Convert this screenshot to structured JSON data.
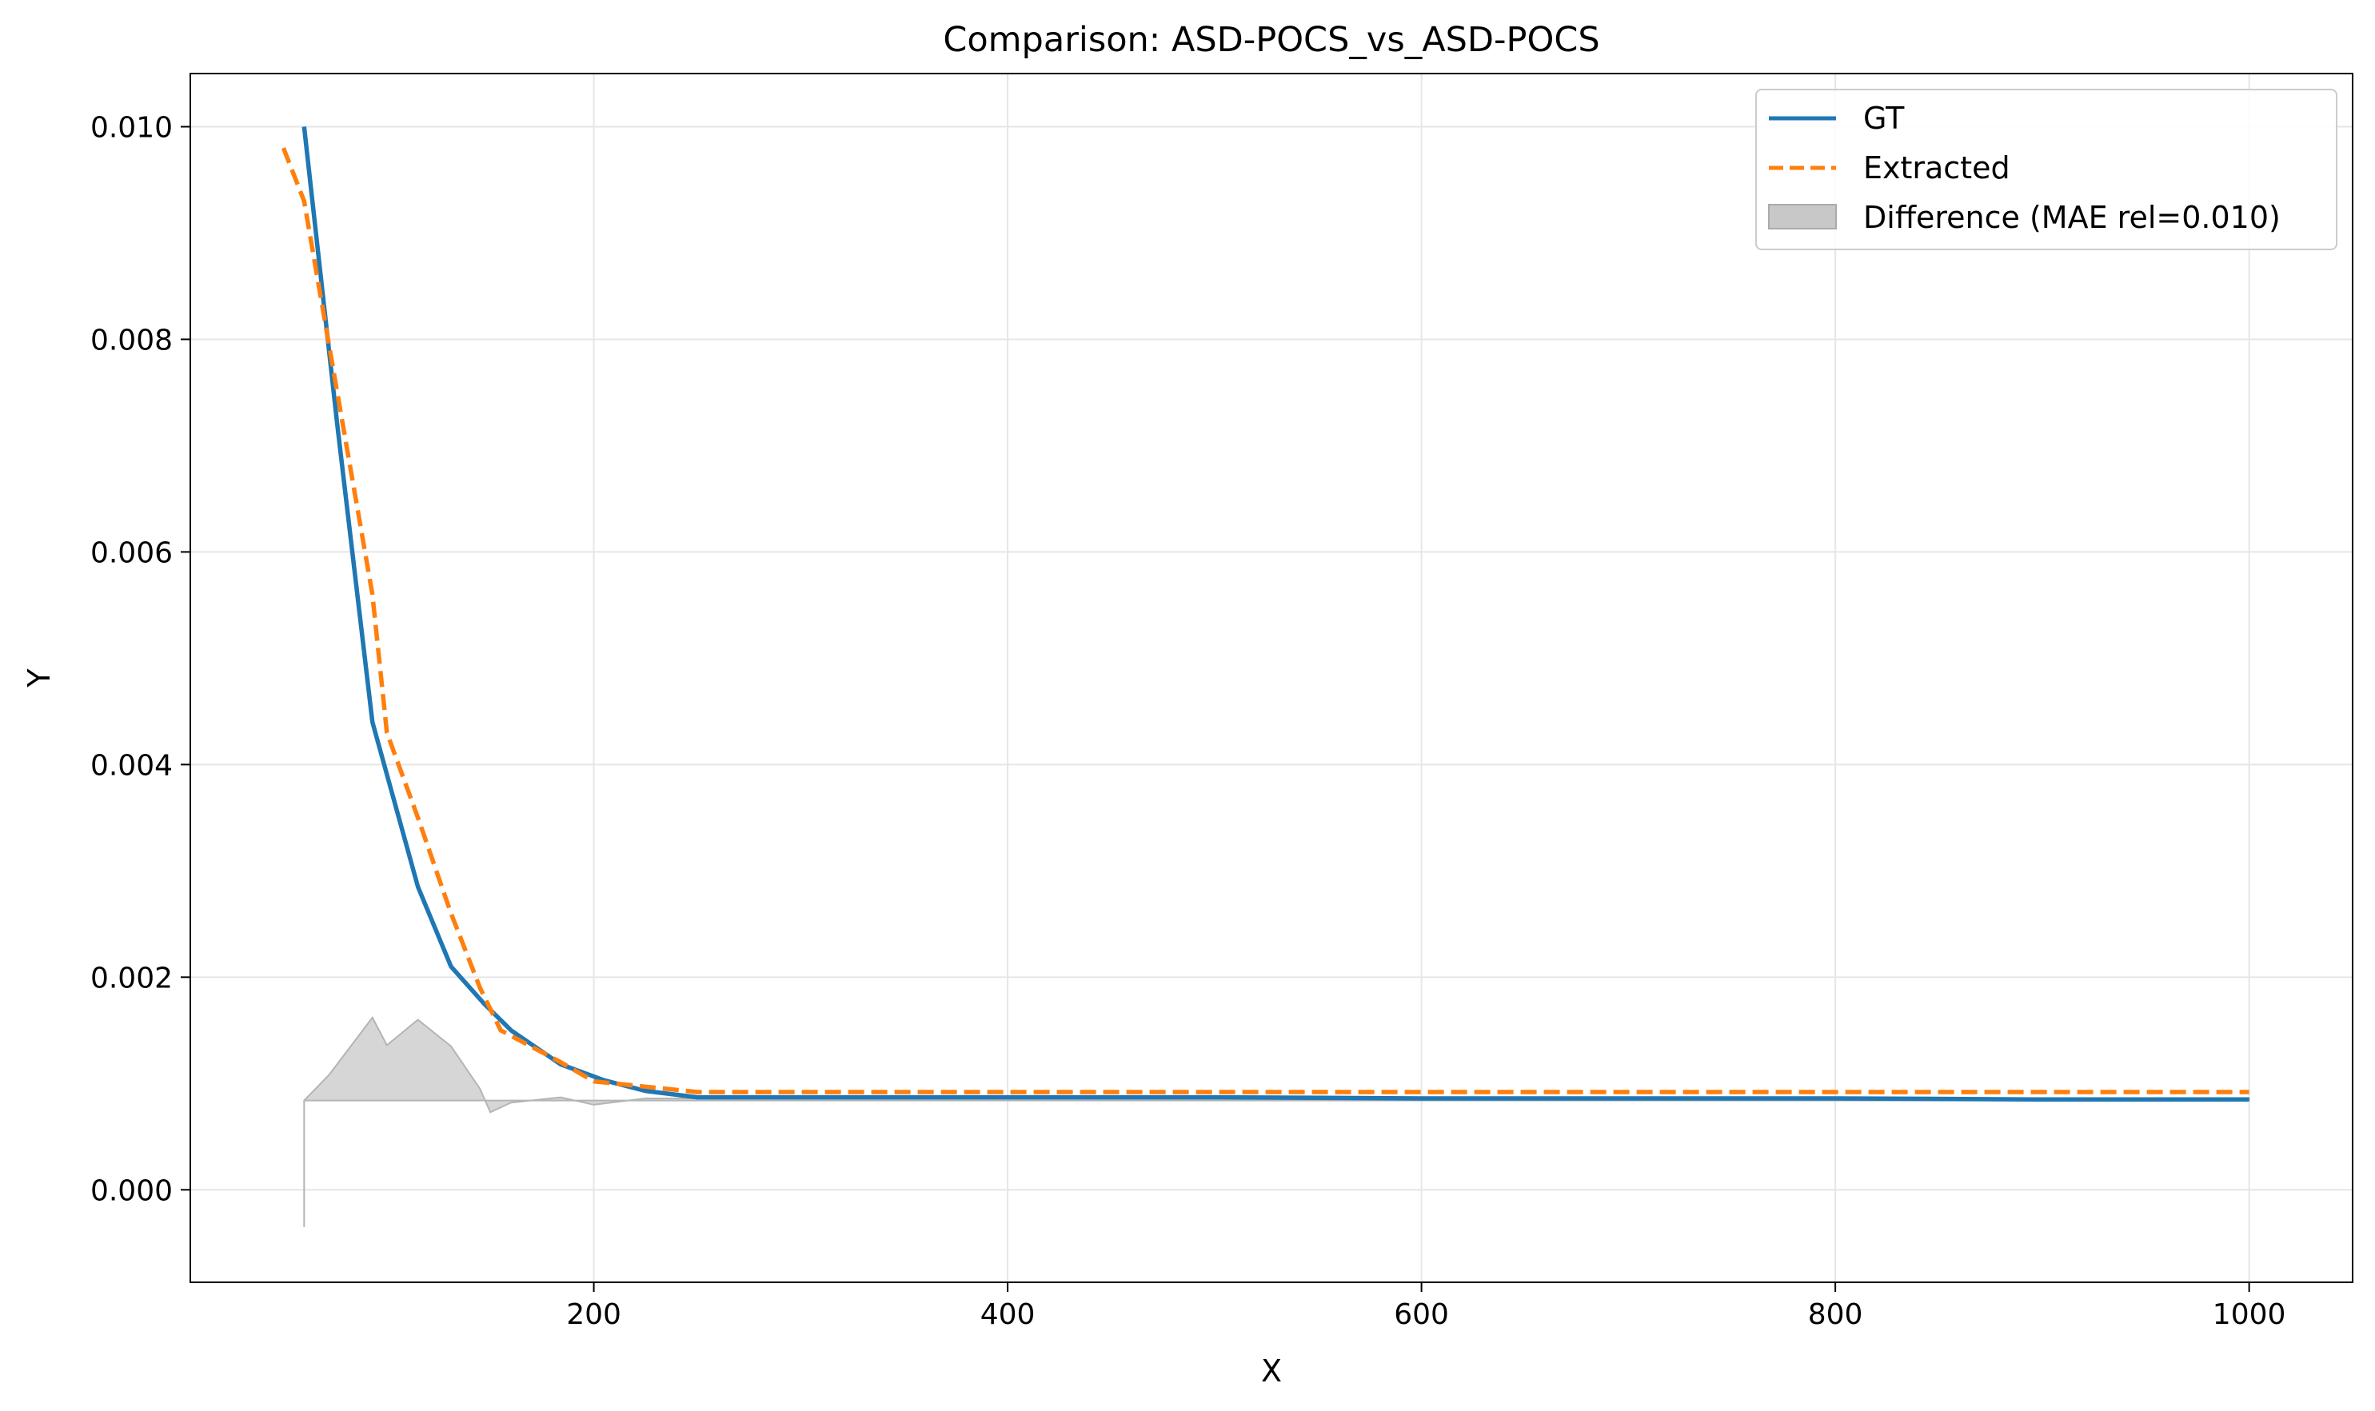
{
  "chart_data": {
    "type": "line",
    "title": "Comparison: ASD-POCS_vs_ASD-POCS",
    "xlabel": "X",
    "ylabel": "Y",
    "xlim": [
      5,
      1050
    ],
    "ylim": [
      -0.00087,
      0.0105
    ],
    "xticks": [
      200,
      400,
      600,
      800,
      1000
    ],
    "xtick_labels": [
      "200",
      "400",
      "600",
      "800",
      "1000"
    ],
    "yticks": [
      0,
      0.002,
      0.004,
      0.006,
      0.008,
      0.01
    ],
    "ytick_labels": [
      "0.000",
      "0.002",
      "0.004",
      "0.006",
      "0.008",
      "0.010"
    ],
    "grid": true,
    "legend_position": "top-right",
    "colors": {
      "gt": "#1f77b4",
      "extracted": "#ff7f0e",
      "difference": "#c8c8c8"
    },
    "series": [
      {
        "name": "GT",
        "style": "solid",
        "x": [
          60,
          76,
          93,
          115,
          131,
          147,
          160,
          184,
          205,
          225,
          250,
          300,
          400,
          500,
          600,
          700,
          800,
          900,
          1000
        ],
        "y": [
          0.01,
          0.0072,
          0.0044,
          0.00285,
          0.0021,
          0.00175,
          0.0015,
          0.00118,
          0.00103,
          0.00093,
          0.00087,
          0.00087,
          0.00087,
          0.00087,
          0.00086,
          0.00086,
          0.00086,
          0.00085,
          0.00085
        ]
      },
      {
        "name": "Extracted",
        "style": "dashed",
        "x": [
          50,
          60,
          76,
          93,
          100,
          115,
          131,
          145,
          155,
          184,
          200,
          225,
          250,
          300,
          400,
          500,
          600,
          700,
          800,
          900,
          1000
        ],
        "y": [
          0.0098,
          0.0093,
          0.0075,
          0.0056,
          0.0043,
          0.0035,
          0.0026,
          0.0019,
          0.0015,
          0.0012,
          0.00102,
          0.00097,
          0.00092,
          0.00092,
          0.00092,
          0.00092,
          0.00092,
          0.00092,
          0.00092,
          0.00092,
          0.00092
        ]
      },
      {
        "name": "Difference (MAE rel=0.010)",
        "style": "fill",
        "x": [
          60,
          60,
          72,
          93,
          100,
          115,
          131,
          145,
          150,
          160,
          184,
          200,
          225,
          250,
          1000
        ],
        "y": [
          -0.00035,
          0.00084,
          0.00108,
          0.00162,
          0.00136,
          0.0016,
          0.00135,
          0.00095,
          0.00073,
          0.00082,
          0.00087,
          0.0008,
          0.00086,
          0.00086,
          0.00086
        ],
        "baseline": 0.00084
      }
    ]
  }
}
